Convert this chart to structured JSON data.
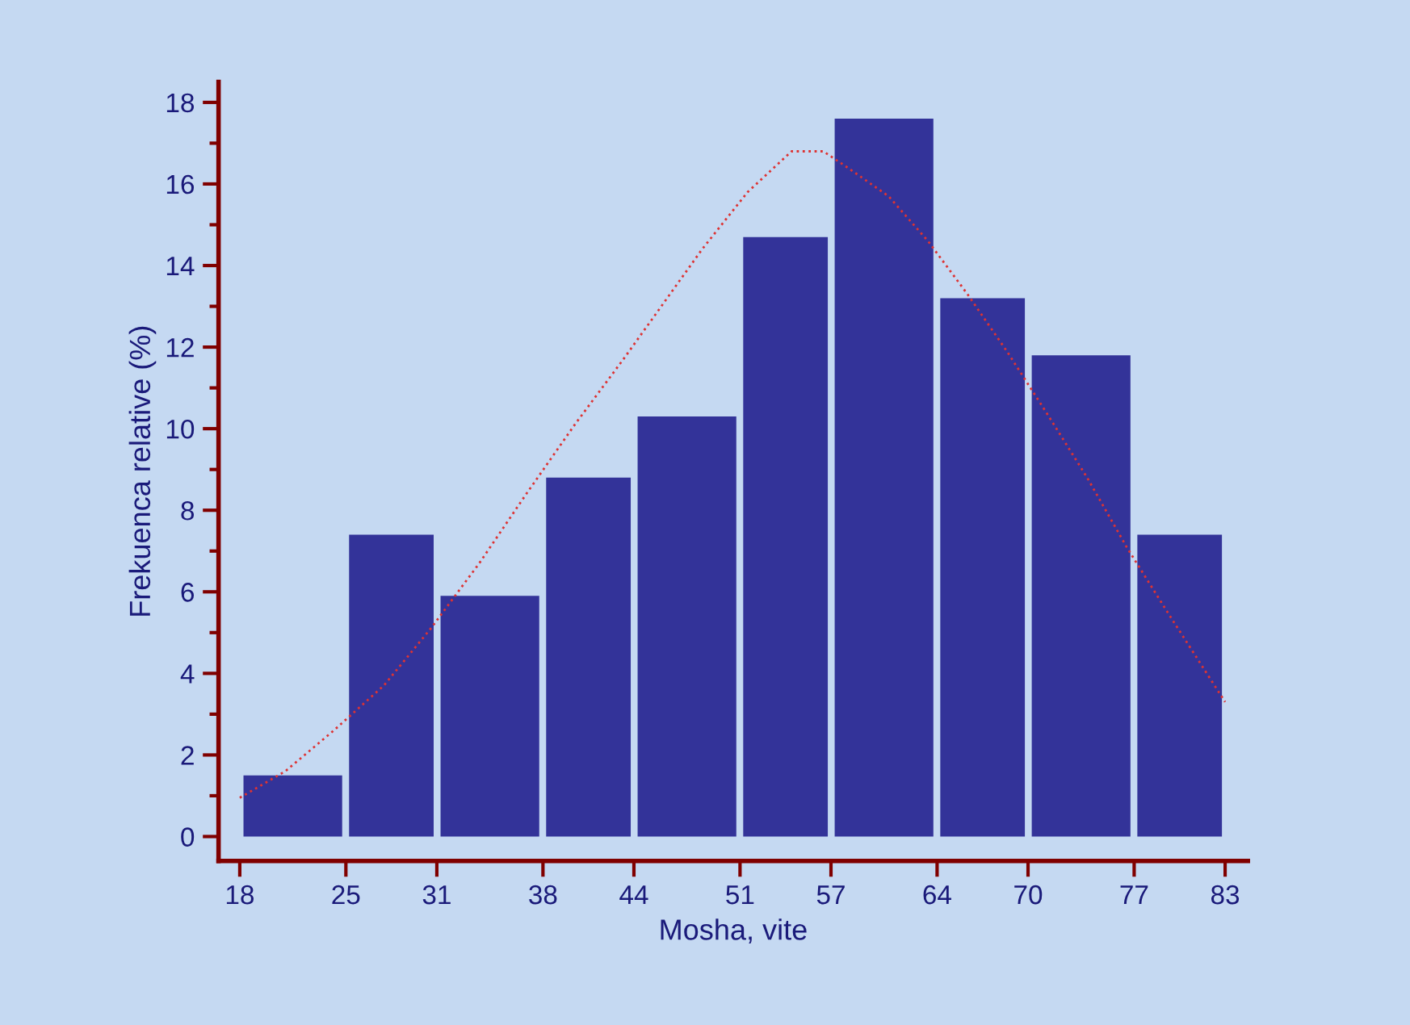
{
  "chart_data": {
    "type": "histogram",
    "xlabel": "Mosha, vite",
    "ylabel": "Frekuenca relative (%)",
    "bins": [
      18,
      25,
      31,
      38,
      44,
      51,
      57,
      64,
      70,
      77,
      83
    ],
    "values": [
      1.5,
      7.4,
      5.9,
      8.8,
      10.3,
      14.7,
      17.6,
      13.2,
      11.8,
      7.4
    ],
    "color": "#333399",
    "series": [
      {
        "type": "line",
        "color": "#dd3333",
        "line_style": "dotted",
        "x": [
          18,
          21,
          24.2,
          27.5,
          30.6,
          33.8,
          36.9,
          40.1,
          43.3,
          46,
          48.5,
          51.5,
          54.4,
          56.5,
          58.1,
          60.8,
          63.4,
          66,
          68.6,
          71.2,
          73.9,
          76.5,
          79.2,
          83
        ],
        "values": [
          0.95,
          1.6,
          2.6,
          3.7,
          5.1,
          6.7,
          8.4,
          10.1,
          11.7,
          13.1,
          14.4,
          15.8,
          16.8,
          16.8,
          16.4,
          15.7,
          14.6,
          13.3,
          11.9,
          10.4,
          8.8,
          7.1,
          5.5,
          3.3
        ]
      }
    ],
    "xlim": [
      16.6,
      84.5
    ],
    "ylim": [
      -0.6,
      18.5
    ],
    "xticks": [
      18,
      25,
      31,
      38,
      44,
      51,
      57,
      64,
      70,
      77,
      83
    ],
    "yticks": [
      0,
      2,
      4,
      6,
      8,
      10,
      12,
      14,
      16,
      18
    ],
    "grid": false
  }
}
